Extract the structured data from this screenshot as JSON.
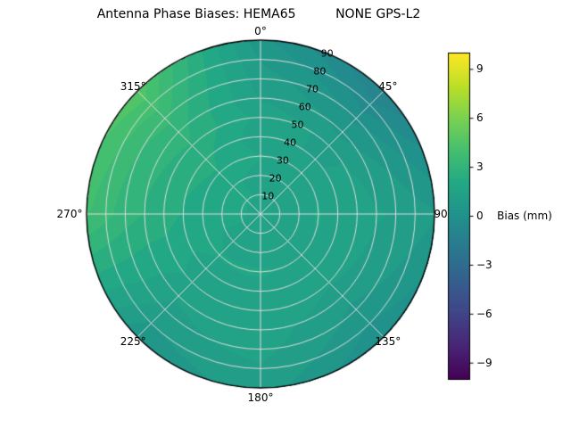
{
  "title": "Antenna Phase Biases: HEMA65          NONE GPS-L2",
  "chart_data": {
    "type": "heatmap",
    "projection": "polar",
    "theta_zero": "top",
    "theta_direction": "clockwise",
    "theta_tick_degrees": [
      0,
      45,
      90,
      135,
      180,
      225,
      270,
      315
    ],
    "theta_tick_labels": [
      "0°",
      "45°",
      "90",
      "135°",
      "180°",
      "225°",
      "270°",
      "315°"
    ],
    "r_tick_values": [
      10,
      20,
      30,
      40,
      50,
      60,
      70,
      80,
      90
    ],
    "r_tick_labels": [
      "10",
      "20",
      "30",
      "40",
      "50",
      "60",
      "70",
      "80",
      "90"
    ],
    "r_label_angle_deg": 22.5,
    "r_max": 90,
    "grid": true,
    "grid_color": "#dcdcdc",
    "outline_color": "#000000",
    "contour_step_mm": 0.5,
    "colorbar": {
      "label": "Bias (mm)",
      "tick_values": [
        9,
        6,
        3,
        0,
        -3,
        -6,
        -9
      ],
      "tick_labels": [
        "9",
        "6",
        "3",
        "0",
        "−3",
        "−6",
        "−9"
      ],
      "vmin": -10,
      "vmax": 10,
      "colormap": "viridis",
      "colormap_stops": [
        "#440154",
        "#482475",
        "#414487",
        "#355f8d",
        "#2a788e",
        "#21918c",
        "#22a884",
        "#44bf70",
        "#7ad151",
        "#bddf26",
        "#fde725"
      ]
    },
    "azimuth_deg": [
      0,
      45,
      90,
      135,
      180,
      225,
      270,
      315,
      360
    ],
    "zenith_deg": [
      0,
      10,
      20,
      30,
      40,
      50,
      60,
      70,
      80,
      90
    ],
    "bias_mm": [
      [
        1.6,
        1.6,
        1.6,
        1.6,
        1.6,
        1.6,
        1.6,
        1.6,
        1.6
      ],
      [
        1.7,
        1.6,
        1.7,
        1.7,
        1.7,
        1.7,
        1.8,
        1.8,
        1.7
      ],
      [
        1.5,
        1.4,
        1.6,
        1.5,
        1.6,
        1.6,
        1.9,
        1.9,
        1.5
      ],
      [
        1.8,
        1.6,
        1.8,
        1.7,
        1.8,
        1.8,
        2.1,
        2.2,
        1.8
      ],
      [
        1.4,
        1.2,
        1.5,
        1.4,
        1.6,
        1.5,
        2.2,
        2.4,
        1.4
      ],
      [
        1.6,
        1.1,
        1.6,
        1.3,
        1.7,
        1.6,
        2.5,
        2.7,
        1.6
      ],
      [
        1.2,
        0.6,
        1.3,
        0.9,
        1.5,
        1.3,
        2.7,
        3.0,
        1.2
      ],
      [
        1.0,
        0.1,
        1.2,
        0.6,
        1.4,
        1.1,
        3.0,
        3.4,
        1.0
      ],
      [
        0.7,
        -0.6,
        1.0,
        0.2,
        1.2,
        0.7,
        3.4,
        4.0,
        0.7
      ],
      [
        0.4,
        -1.3,
        0.8,
        -0.3,
        1.0,
        0.3,
        3.8,
        4.6,
        0.4
      ]
    ]
  }
}
